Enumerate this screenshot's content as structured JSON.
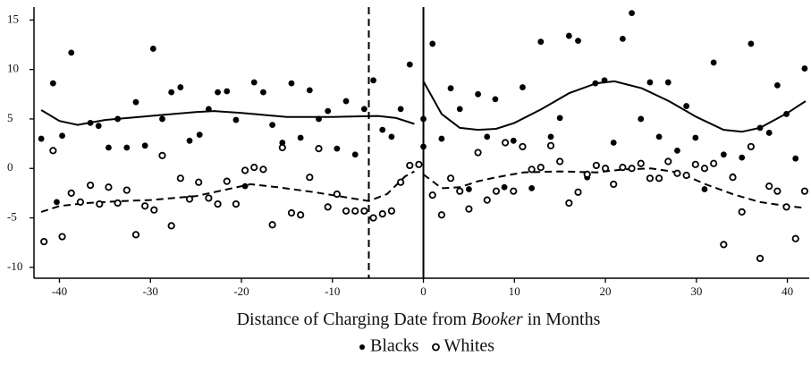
{
  "chart_data": {
    "type": "scatter",
    "x_label_parts": [
      "Distance of Charging Date from ",
      "Booker",
      " in Months"
    ],
    "xlim": [
      -42.8,
      42.4
    ],
    "ylim": [
      -11.1,
      16.3
    ],
    "xticks": [
      -40,
      -30,
      -20,
      -10,
      0,
      10,
      20,
      30,
      40
    ],
    "yticks": [
      -10,
      -5,
      0,
      5,
      10,
      15
    ],
    "reference_lines": [
      {
        "x": -6,
        "style": "dashed"
      },
      {
        "x": 0,
        "style": "solid"
      }
    ],
    "series": [
      {
        "name": "Blacks",
        "color": "#000000",
        "marker": "filled",
        "fit_style": "solid",
        "x": [
          -42,
          -40.7,
          -39.7,
          -38.7,
          -40.3,
          -36.6,
          -35.7,
          -34.6,
          -33.6,
          -32.6,
          -31.6,
          -30.6,
          -29.7,
          -28.7,
          -27.7,
          -26.7,
          -25.7,
          -24.6,
          -23.6,
          -22.6,
          -21.6,
          -20.6,
          -19.6,
          -18.6,
          -17.6,
          -16.6,
          -15.5,
          -14.5,
          -13.5,
          -12.5,
          -11.5,
          -10.5,
          -9.5,
          -8.5,
          -7.5,
          -6.5,
          -5.5,
          -4.5,
          -3.5,
          -2.5,
          -1.5,
          0,
          0,
          1,
          2,
          3,
          4,
          5,
          6,
          7,
          7.9,
          8.9,
          9.9,
          10.9,
          11.9,
          12.9,
          14,
          15,
          16,
          17,
          18,
          18.9,
          19.9,
          20.9,
          21.9,
          22.9,
          23.9,
          24.9,
          25.9,
          26.9,
          27.9,
          28.9,
          29.9,
          30.9,
          31.9,
          33,
          34,
          35,
          36,
          37,
          38,
          38.9,
          39.9,
          40.9,
          41.9
        ],
        "values": [
          3,
          8.6,
          3.3,
          11.7,
          -3.4,
          4.6,
          4.3,
          2.1,
          5,
          2.1,
          6.7,
          2.3,
          12.1,
          5,
          7.7,
          8.2,
          2.8,
          3.4,
          6,
          7.7,
          7.8,
          4.9,
          -1.8,
          8.7,
          7.7,
          4.4,
          2.6,
          8.6,
          3.1,
          7.9,
          5,
          5.8,
          2,
          6.8,
          1.4,
          6,
          8.9,
          3.9,
          3.2,
          6,
          10.5,
          5,
          2.2,
          12.6,
          3,
          8.1,
          6,
          -2.1,
          7.5,
          3.2,
          7,
          -1.9,
          2.8,
          8.2,
          -2,
          12.8,
          3.2,
          5.1,
          13.4,
          12.9,
          -0.9,
          8.6,
          8.9,
          2.6,
          13.1,
          15.7,
          5,
          8.7,
          3.2,
          8.7,
          1.8,
          6.3,
          3.1,
          -2.1,
          10.7,
          1.4,
          -0.8,
          1.1,
          12.6,
          4.1,
          3.6,
          8.4,
          5.5,
          1,
          10.1
        ],
        "fit_x": [
          -42,
          -40,
          -38,
          -35,
          -30,
          -25,
          -23,
          -20,
          -15,
          -10,
          -5,
          -3,
          -1,
          null,
          0,
          2,
          4,
          6,
          8,
          10,
          13,
          16,
          19,
          21,
          24,
          27,
          30,
          33,
          35,
          37,
          40,
          42
        ],
        "fit_values": [
          5.9,
          4.8,
          4.4,
          4.9,
          5.3,
          5.7,
          5.8,
          5.6,
          5.2,
          5.2,
          5.3,
          5.1,
          4.5,
          null,
          8.8,
          5.5,
          4.1,
          3.9,
          4,
          4.6,
          6,
          7.6,
          8.6,
          8.8,
          8.1,
          6.8,
          5.2,
          3.9,
          3.7,
          4.1,
          5.6,
          6.8
        ]
      },
      {
        "name": "Whites",
        "color": "#000000",
        "marker": "open",
        "fit_style": "dashed",
        "x": [
          -41.7,
          -40.7,
          -39.7,
          -38.7,
          -37.7,
          -36.6,
          -35.6,
          -34.6,
          -33.6,
          -32.6,
          -31.6,
          -30.6,
          -29.6,
          -28.7,
          -27.7,
          -26.7,
          -25.7,
          -24.7,
          -23.6,
          -22.6,
          -21.6,
          -20.6,
          -19.6,
          -18.6,
          -17.6,
          -16.6,
          -15.5,
          -14.5,
          -13.5,
          -12.5,
          -11.5,
          -10.5,
          -9.5,
          -8.5,
          -7.5,
          -6.5,
          -5.5,
          -4.5,
          -3.5,
          -2.5,
          -1.5,
          -0.5,
          1,
          2,
          3,
          4,
          5,
          6,
          7,
          8,
          9,
          9.9,
          10.9,
          11.9,
          12.9,
          14,
          15,
          16,
          17,
          18,
          19,
          20,
          20.9,
          21.9,
          22.9,
          23.9,
          24.9,
          25.9,
          26.9,
          27.9,
          28.9,
          29.9,
          30.9,
          31.9,
          33,
          34,
          35,
          36,
          37,
          38,
          38.9,
          39.9,
          40.9,
          41.9
        ],
        "values": [
          -7.4,
          1.8,
          -6.9,
          -2.5,
          -3.4,
          -1.7,
          -3.6,
          -1.9,
          -3.5,
          -2.2,
          -6.7,
          -3.8,
          -4.2,
          1.3,
          -5.8,
          -1,
          -3.1,
          -1.4,
          -3,
          -3.6,
          -1.3,
          -3.6,
          -0.2,
          0.1,
          -0.1,
          -5.7,
          2.1,
          -4.5,
          -4.7,
          -0.9,
          2,
          -3.9,
          -2.6,
          -4.3,
          -4.3,
          -4.3,
          -5,
          -4.6,
          -4.3,
          -1.4,
          0.3,
          0.4,
          -2.7,
          -4.7,
          -1,
          -2.3,
          -4.1,
          1.6,
          -3.2,
          -2.3,
          2.6,
          -2.3,
          2.2,
          -0.1,
          0.1,
          2.3,
          0.7,
          -3.5,
          -2.4,
          -0.6,
          0.3,
          0,
          -1.6,
          0.1,
          0,
          0.5,
          -1,
          -1,
          0.7,
          -0.5,
          -0.7,
          0.4,
          0,
          0.5,
          -7.7,
          -0.9,
          -4.4,
          2.2,
          -9.1,
          -1.8,
          -2.3,
          -3.9,
          -7.1,
          -2.3
        ],
        "fit_x": [
          -42,
          -40,
          -37,
          -33,
          -30,
          -25,
          -22,
          -19,
          -16,
          -12,
          -8,
          -6,
          -4,
          -2,
          -1,
          null,
          0,
          2,
          4,
          6,
          8,
          11,
          15,
          19,
          22,
          25,
          28,
          31,
          34,
          37,
          40,
          42
        ],
        "fit_values": [
          -4.4,
          -3.8,
          -3.5,
          -3.3,
          -3.2,
          -2.8,
          -2.2,
          -1.6,
          -1.9,
          -2.4,
          -3,
          -3.3,
          -2.6,
          -0.8,
          -0.3,
          null,
          -0.6,
          -2,
          -1.9,
          -1.3,
          -0.9,
          -0.4,
          -0.3,
          -0.4,
          -0.1,
          0,
          -0.4,
          -1.6,
          -2.6,
          -3.4,
          -3.8,
          -4
        ]
      }
    ]
  }
}
